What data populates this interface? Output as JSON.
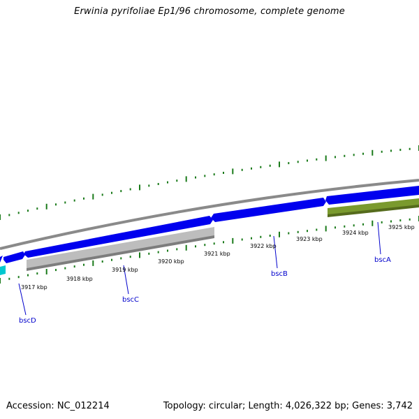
{
  "header": {
    "title": "Erwinia pyrifoliae Ep1/96 chromosome, complete genome"
  },
  "footer": {
    "accession": "Accession: NC_012214",
    "summary": "Topology: circular; Length: 4,026,322 bp; Genes: 3,742"
  },
  "colors": {
    "backbone": "#808080",
    "gene_forward": "#0000ee",
    "gene_grey": "#b8b8b8",
    "gene_olive": "#6b8e23",
    "gene_cyan": "#00c8d0",
    "tick": "#1a7a1a",
    "label_link": "#0000cc"
  },
  "ticks": {
    "labels": [
      "3917 kbp",
      "3918 kbp",
      "3919 kbp",
      "3920 kbp",
      "3921 kbp",
      "3922 kbp",
      "3923 kbp",
      "3924 kbp",
      "3925 kbp"
    ]
  },
  "genes": {
    "labels": [
      "bscD",
      "bscC",
      "bscB",
      "bscA"
    ]
  }
}
